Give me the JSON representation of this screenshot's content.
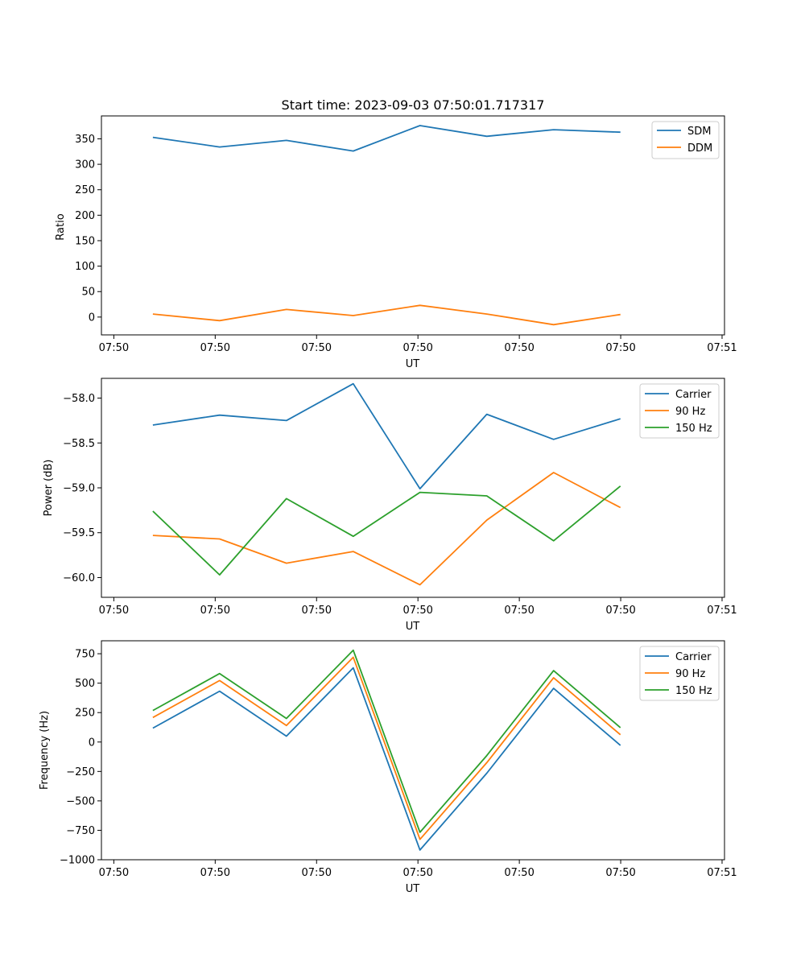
{
  "chart_data": [
    {
      "type": "line",
      "title": "Start time: 2023-09-03 07:50:01.717317",
      "xlabel": "UT",
      "ylabel": "Ratio",
      "x_tick_labels": [
        "07:50",
        "07:50",
        "07:50",
        "07:50",
        "07:50",
        "07:50",
        "07:51"
      ],
      "xlim": [
        0,
        1
      ],
      "ylim": [
        -35,
        395
      ],
      "y_ticks": [
        0,
        50,
        100,
        150,
        200,
        250,
        300,
        350
      ],
      "y_tick_labels": [
        "0",
        "50",
        "100",
        "150",
        "200",
        "250",
        "300",
        "350"
      ],
      "x": [
        0.0825,
        0.1897,
        0.2969,
        0.4041,
        0.5113,
        0.6185,
        0.7257,
        0.8329
      ],
      "legend_position": "upper-right",
      "series": [
        {
          "name": "SDM",
          "color": "#1f77b4",
          "values": [
            353,
            334,
            347,
            326,
            376,
            355,
            368,
            363
          ]
        },
        {
          "name": "DDM",
          "color": "#ff7f0e",
          "values": [
            6,
            -7,
            15,
            3,
            23,
            6,
            -15,
            5
          ]
        }
      ]
    },
    {
      "type": "line",
      "title": "",
      "xlabel": "UT",
      "ylabel": "Power (dB)",
      "x_tick_labels": [
        "07:50",
        "07:50",
        "07:50",
        "07:50",
        "07:50",
        "07:50",
        "07:51"
      ],
      "xlim": [
        0,
        1
      ],
      "ylim": [
        -60.22,
        -57.78
      ],
      "y_ticks": [
        -60.0,
        -59.5,
        -59.0,
        -58.5,
        -58.0
      ],
      "y_tick_labels": [
        "−60.0",
        "−59.5",
        "−59.0",
        "−58.5",
        "−58.0"
      ],
      "x": [
        0.0825,
        0.1897,
        0.2969,
        0.4041,
        0.5113,
        0.6185,
        0.7257,
        0.8329
      ],
      "legend_position": "upper-right",
      "series": [
        {
          "name": "Carrier",
          "color": "#1f77b4",
          "values": [
            -58.3,
            -58.19,
            -58.25,
            -57.84,
            -59.01,
            -58.18,
            -58.46,
            -58.23
          ]
        },
        {
          "name": "90 Hz",
          "color": "#ff7f0e",
          "values": [
            -59.53,
            -59.57,
            -59.84,
            -59.71,
            -60.08,
            -59.36,
            -58.83,
            -59.22
          ]
        },
        {
          "name": "150 Hz",
          "color": "#2ca02c",
          "values": [
            -59.26,
            -59.97,
            -59.12,
            -59.54,
            -59.05,
            -59.09,
            -59.59,
            -58.98
          ]
        }
      ]
    },
    {
      "type": "line",
      "title": "",
      "xlabel": "UT",
      "ylabel": "Frequency (Hz)",
      "x_tick_labels": [
        "07:50",
        "07:50",
        "07:50",
        "07:50",
        "07:50",
        "07:50",
        "07:51"
      ],
      "xlim": [
        0,
        1
      ],
      "ylim": [
        -1000,
        860
      ],
      "y_ticks": [
        -1000,
        -750,
        -500,
        -250,
        0,
        250,
        500,
        750
      ],
      "y_tick_labels": [
        "−1000",
        "−750",
        "−500",
        "−250",
        "0",
        "250",
        "500",
        "750"
      ],
      "x": [
        0.0825,
        0.1897,
        0.2969,
        0.4041,
        0.5113,
        0.6185,
        0.7257,
        0.8329
      ],
      "legend_position": "upper-right",
      "series": [
        {
          "name": "Carrier",
          "color": "#1f77b4",
          "values": [
            118,
            432,
            50,
            630,
            -917,
            -265,
            456,
            -28
          ]
        },
        {
          "name": "90 Hz",
          "color": "#ff7f0e",
          "values": [
            208,
            522,
            140,
            720,
            -827,
            -175,
            546,
            62
          ]
        },
        {
          "name": "150 Hz",
          "color": "#2ca02c",
          "values": [
            268,
            582,
            200,
            780,
            -767,
            -115,
            606,
            122
          ]
        }
      ]
    }
  ]
}
